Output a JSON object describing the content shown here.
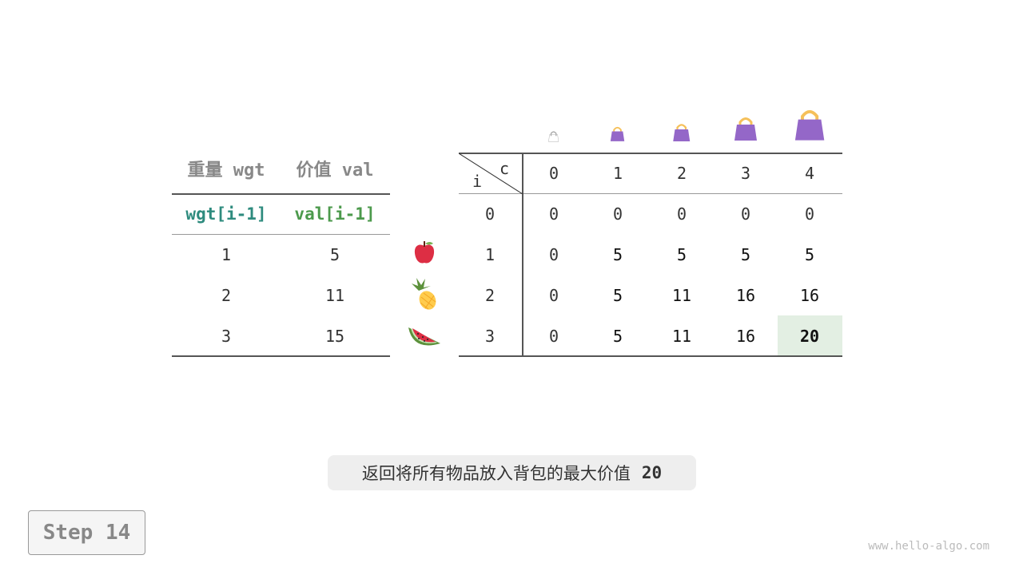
{
  "left_table": {
    "headers": [
      "重量 wgt",
      "价值 val"
    ],
    "subheaders": [
      "wgt[i-1]",
      "val[i-1]"
    ],
    "rows": [
      [
        "1",
        "5"
      ],
      [
        "2",
        "11"
      ],
      [
        "3",
        "15"
      ]
    ]
  },
  "items": [
    {
      "icon": "apple-icon"
    },
    {
      "icon": "pineapple-icon"
    },
    {
      "icon": "watermelon-icon"
    }
  ],
  "dp_table": {
    "row_label": "i",
    "col_label": "c",
    "cols": [
      "0",
      "1",
      "2",
      "3",
      "4"
    ],
    "row_indices": [
      "0",
      "1",
      "2",
      "3"
    ],
    "cells": [
      [
        "0",
        "0",
        "0",
        "0",
        "0"
      ],
      [
        "0",
        "5",
        "5",
        "5",
        "5"
      ],
      [
        "0",
        "5",
        "11",
        "16",
        "16"
      ],
      [
        "0",
        "5",
        "11",
        "16",
        "20"
      ]
    ],
    "highlight": {
      "row": 3,
      "col": 4,
      "color": "#e3efe3"
    }
  },
  "caption": {
    "text": "返回将所有物品放入背包的最大价值",
    "value": "20"
  },
  "step_label": "Step 14",
  "watermark": "www.hello-algo.com",
  "colors": {
    "bag": "#9467c8",
    "handle": "#f5c05a",
    "wgt": "#2e8b7e",
    "val": "#4c9a4c"
  }
}
